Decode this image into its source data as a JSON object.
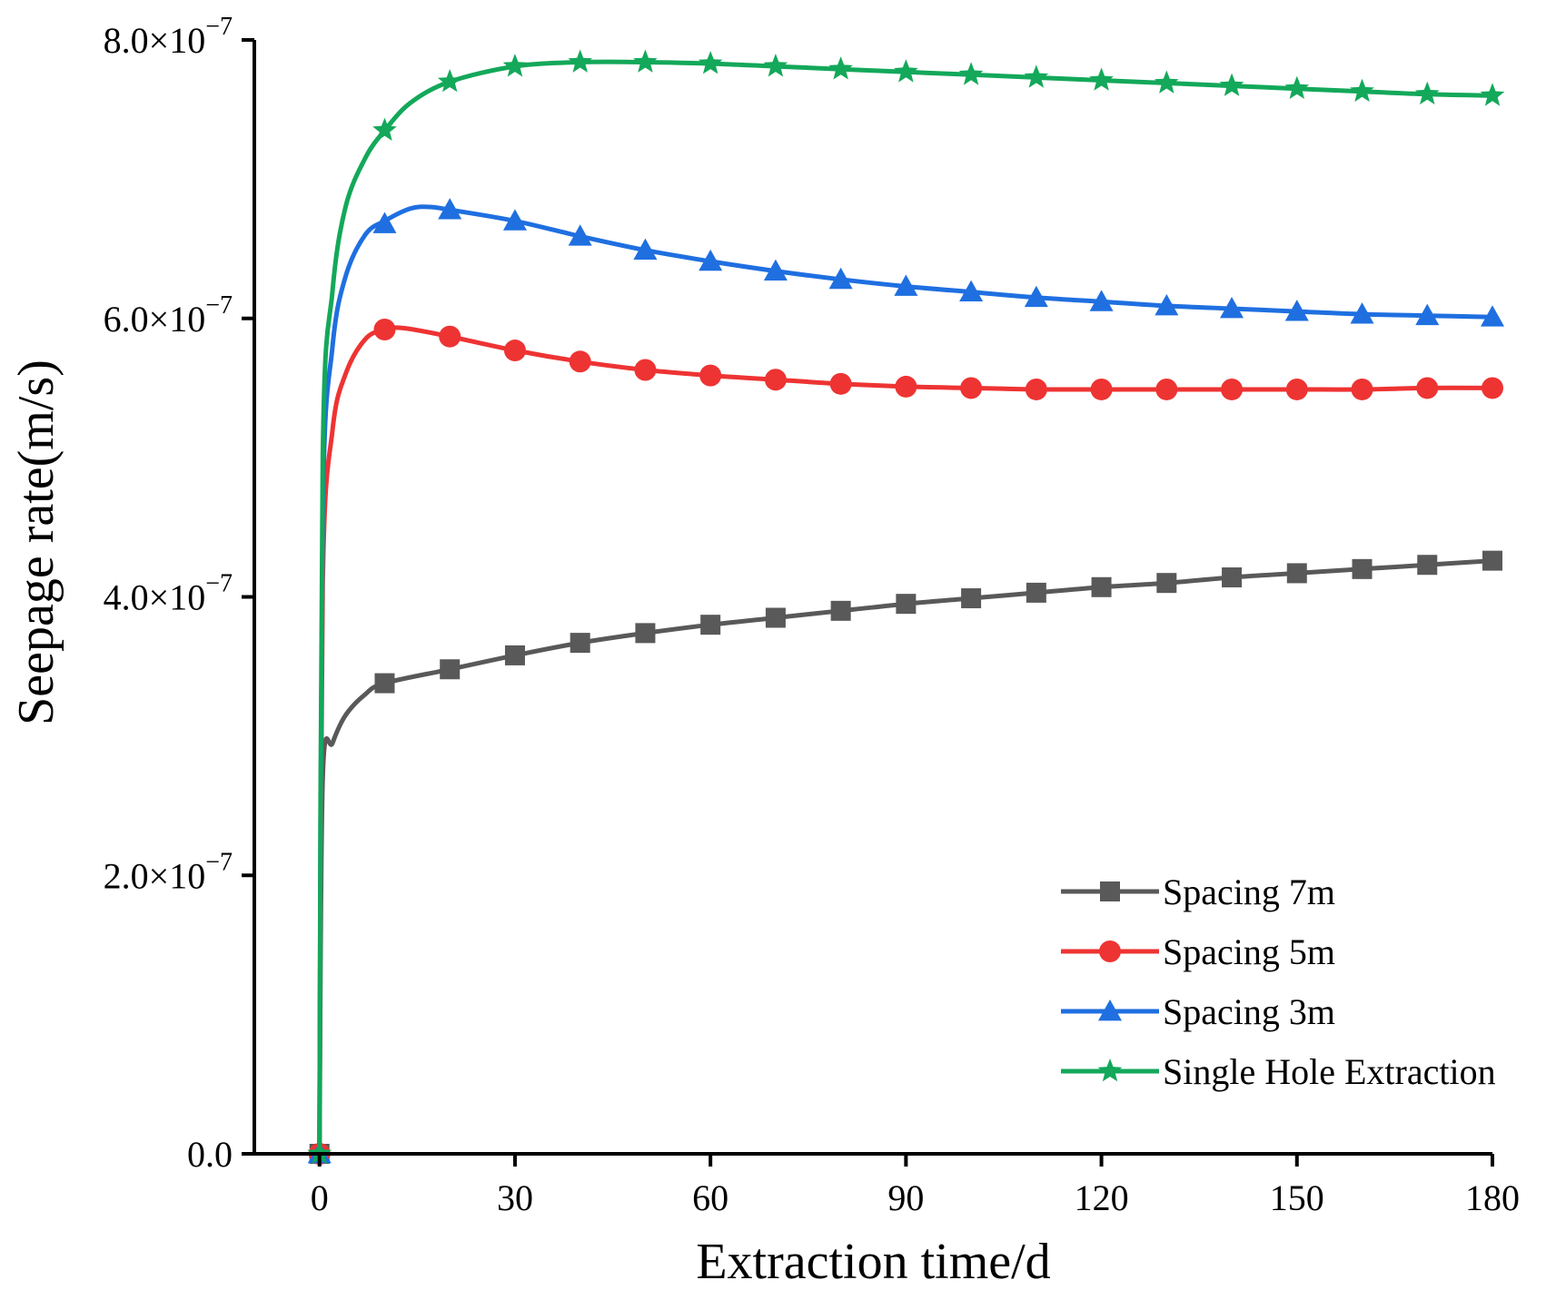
{
  "chart_data": {
    "type": "line",
    "xlabel": "Extraction time/d",
    "ylabel": "Seepage rate(m/s)",
    "xlim": [
      -10,
      180
    ],
    "ylim": [
      0,
      8e-07
    ],
    "x_ticks": [
      0,
      30,
      60,
      90,
      120,
      150,
      180
    ],
    "x_tick_labels": [
      "0",
      "30",
      "60",
      "90",
      "120",
      "150",
      "180"
    ],
    "y_ticks": [
      0,
      2e-07,
      4e-07,
      6e-07,
      8e-07
    ],
    "y_tick_labels": [
      {
        "mant": "0.0",
        "exp": ""
      },
      {
        "mant": "2.0×10",
        "exp": "−7"
      },
      {
        "mant": "4.0×10",
        "exp": "−7"
      },
      {
        "mant": "6.0×10",
        "exp": "−7"
      },
      {
        "mant": "8.0×10",
        "exp": "−7"
      }
    ],
    "grid": false,
    "legend_position": "bottom-right",
    "series": [
      {
        "name": "Spacing 7m",
        "color": "#595959",
        "marker": "square",
        "curve": [
          [
            0,
            0
          ],
          [
            0.5,
            2.7e-07
          ],
          [
            2,
            2.95e-07
          ],
          [
            4,
            3.15e-07
          ],
          [
            7,
            3.3e-07
          ],
          [
            10,
            3.38e-07
          ]
        ],
        "x": [
          0,
          10,
          20,
          30,
          40,
          50,
          60,
          70,
          80,
          90,
          100,
          110,
          120,
          130,
          140,
          150,
          160,
          170,
          180
        ],
        "y": [
          0,
          3.38e-07,
          3.48e-07,
          3.58e-07,
          3.67e-07,
          3.74e-07,
          3.8e-07,
          3.85e-07,
          3.9e-07,
          3.95e-07,
          3.99e-07,
          4.03e-07,
          4.07e-07,
          4.1e-07,
          4.14e-07,
          4.17e-07,
          4.2e-07,
          4.23e-07,
          4.26e-07
        ]
      },
      {
        "name": "Spacing 5m",
        "color": "#ee3333",
        "marker": "circle",
        "curve": [
          [
            0,
            0
          ],
          [
            0.5,
            4.1e-07
          ],
          [
            2,
            5.2e-07
          ],
          [
            4,
            5.6e-07
          ],
          [
            7,
            5.85e-07
          ],
          [
            10,
            5.92e-07
          ],
          [
            13,
            5.93e-07
          ]
        ],
        "x": [
          0,
          10,
          20,
          30,
          40,
          50,
          60,
          70,
          80,
          90,
          100,
          110,
          120,
          130,
          140,
          150,
          160,
          170,
          180
        ],
        "y": [
          0,
          5.92e-07,
          5.87e-07,
          5.77e-07,
          5.69e-07,
          5.63e-07,
          5.59e-07,
          5.56e-07,
          5.53e-07,
          5.51e-07,
          5.5e-07,
          5.49e-07,
          5.49e-07,
          5.49e-07,
          5.49e-07,
          5.49e-07,
          5.49e-07,
          5.5e-07,
          5.5e-07
        ]
      },
      {
        "name": "Spacing 3m",
        "color": "#1f6fe0",
        "marker": "triangle",
        "curve": [
          [
            0,
            0
          ],
          [
            0.5,
            4.6e-07
          ],
          [
            2,
            5.8e-07
          ],
          [
            4,
            6.3e-07
          ],
          [
            7,
            6.6e-07
          ],
          [
            10,
            6.7e-07
          ],
          [
            14,
            6.79e-07
          ],
          [
            17,
            6.8e-07
          ]
        ],
        "x": [
          0,
          10,
          20,
          30,
          40,
          50,
          60,
          70,
          80,
          90,
          100,
          110,
          120,
          130,
          140,
          150,
          160,
          170,
          180
        ],
        "y": [
          0,
          6.68e-07,
          6.78e-07,
          6.7e-07,
          6.59e-07,
          6.49e-07,
          6.41e-07,
          6.34e-07,
          6.28e-07,
          6.23e-07,
          6.19e-07,
          6.15e-07,
          6.12e-07,
          6.09e-07,
          6.07e-07,
          6.05e-07,
          6.03e-07,
          6.02e-07,
          6.01e-07
        ]
      },
      {
        "name": "Single Hole Extraction",
        "color": "#13a85a",
        "marker": "star",
        "curve": [
          [
            0,
            0
          ],
          [
            0.5,
            5e-07
          ],
          [
            2,
            6.2e-07
          ],
          [
            4,
            6.8e-07
          ],
          [
            7,
            7.15e-07
          ],
          [
            10,
            7.35e-07
          ],
          [
            14,
            7.55e-07
          ]
        ],
        "x": [
          0,
          10,
          20,
          30,
          40,
          50,
          60,
          70,
          80,
          90,
          100,
          110,
          120,
          130,
          140,
          150,
          160,
          170,
          180
        ],
        "y": [
          0,
          7.35e-07,
          7.7e-07,
          7.81e-07,
          7.84e-07,
          7.84e-07,
          7.83e-07,
          7.81e-07,
          7.79e-07,
          7.77e-07,
          7.75e-07,
          7.73e-07,
          7.71e-07,
          7.69e-07,
          7.67e-07,
          7.65e-07,
          7.63e-07,
          7.61e-07,
          7.6e-07
        ]
      }
    ]
  }
}
